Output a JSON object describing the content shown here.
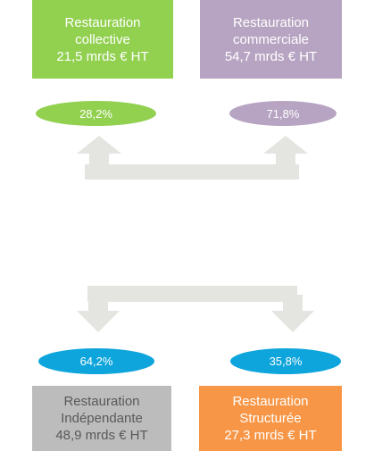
{
  "top_nodes": [
    {
      "lines": [
        "Restauration",
        "collective",
        "21,5 mrds € HT"
      ],
      "share": "28,2%"
    },
    {
      "lines": [
        "Restauration",
        "commerciale",
        "54,7 mrds € HT"
      ],
      "share": "71,8%"
    }
  ],
  "bottom_nodes": [
    {
      "lines": [
        "Restauration",
        "Indépendante",
        "48,9 mrds € HT"
      ],
      "share": "64,2%"
    },
    {
      "lines": [
        "Restauration",
        "Structurée",
        "27,3 mrds € HT"
      ],
      "share": "35,8%"
    }
  ]
}
